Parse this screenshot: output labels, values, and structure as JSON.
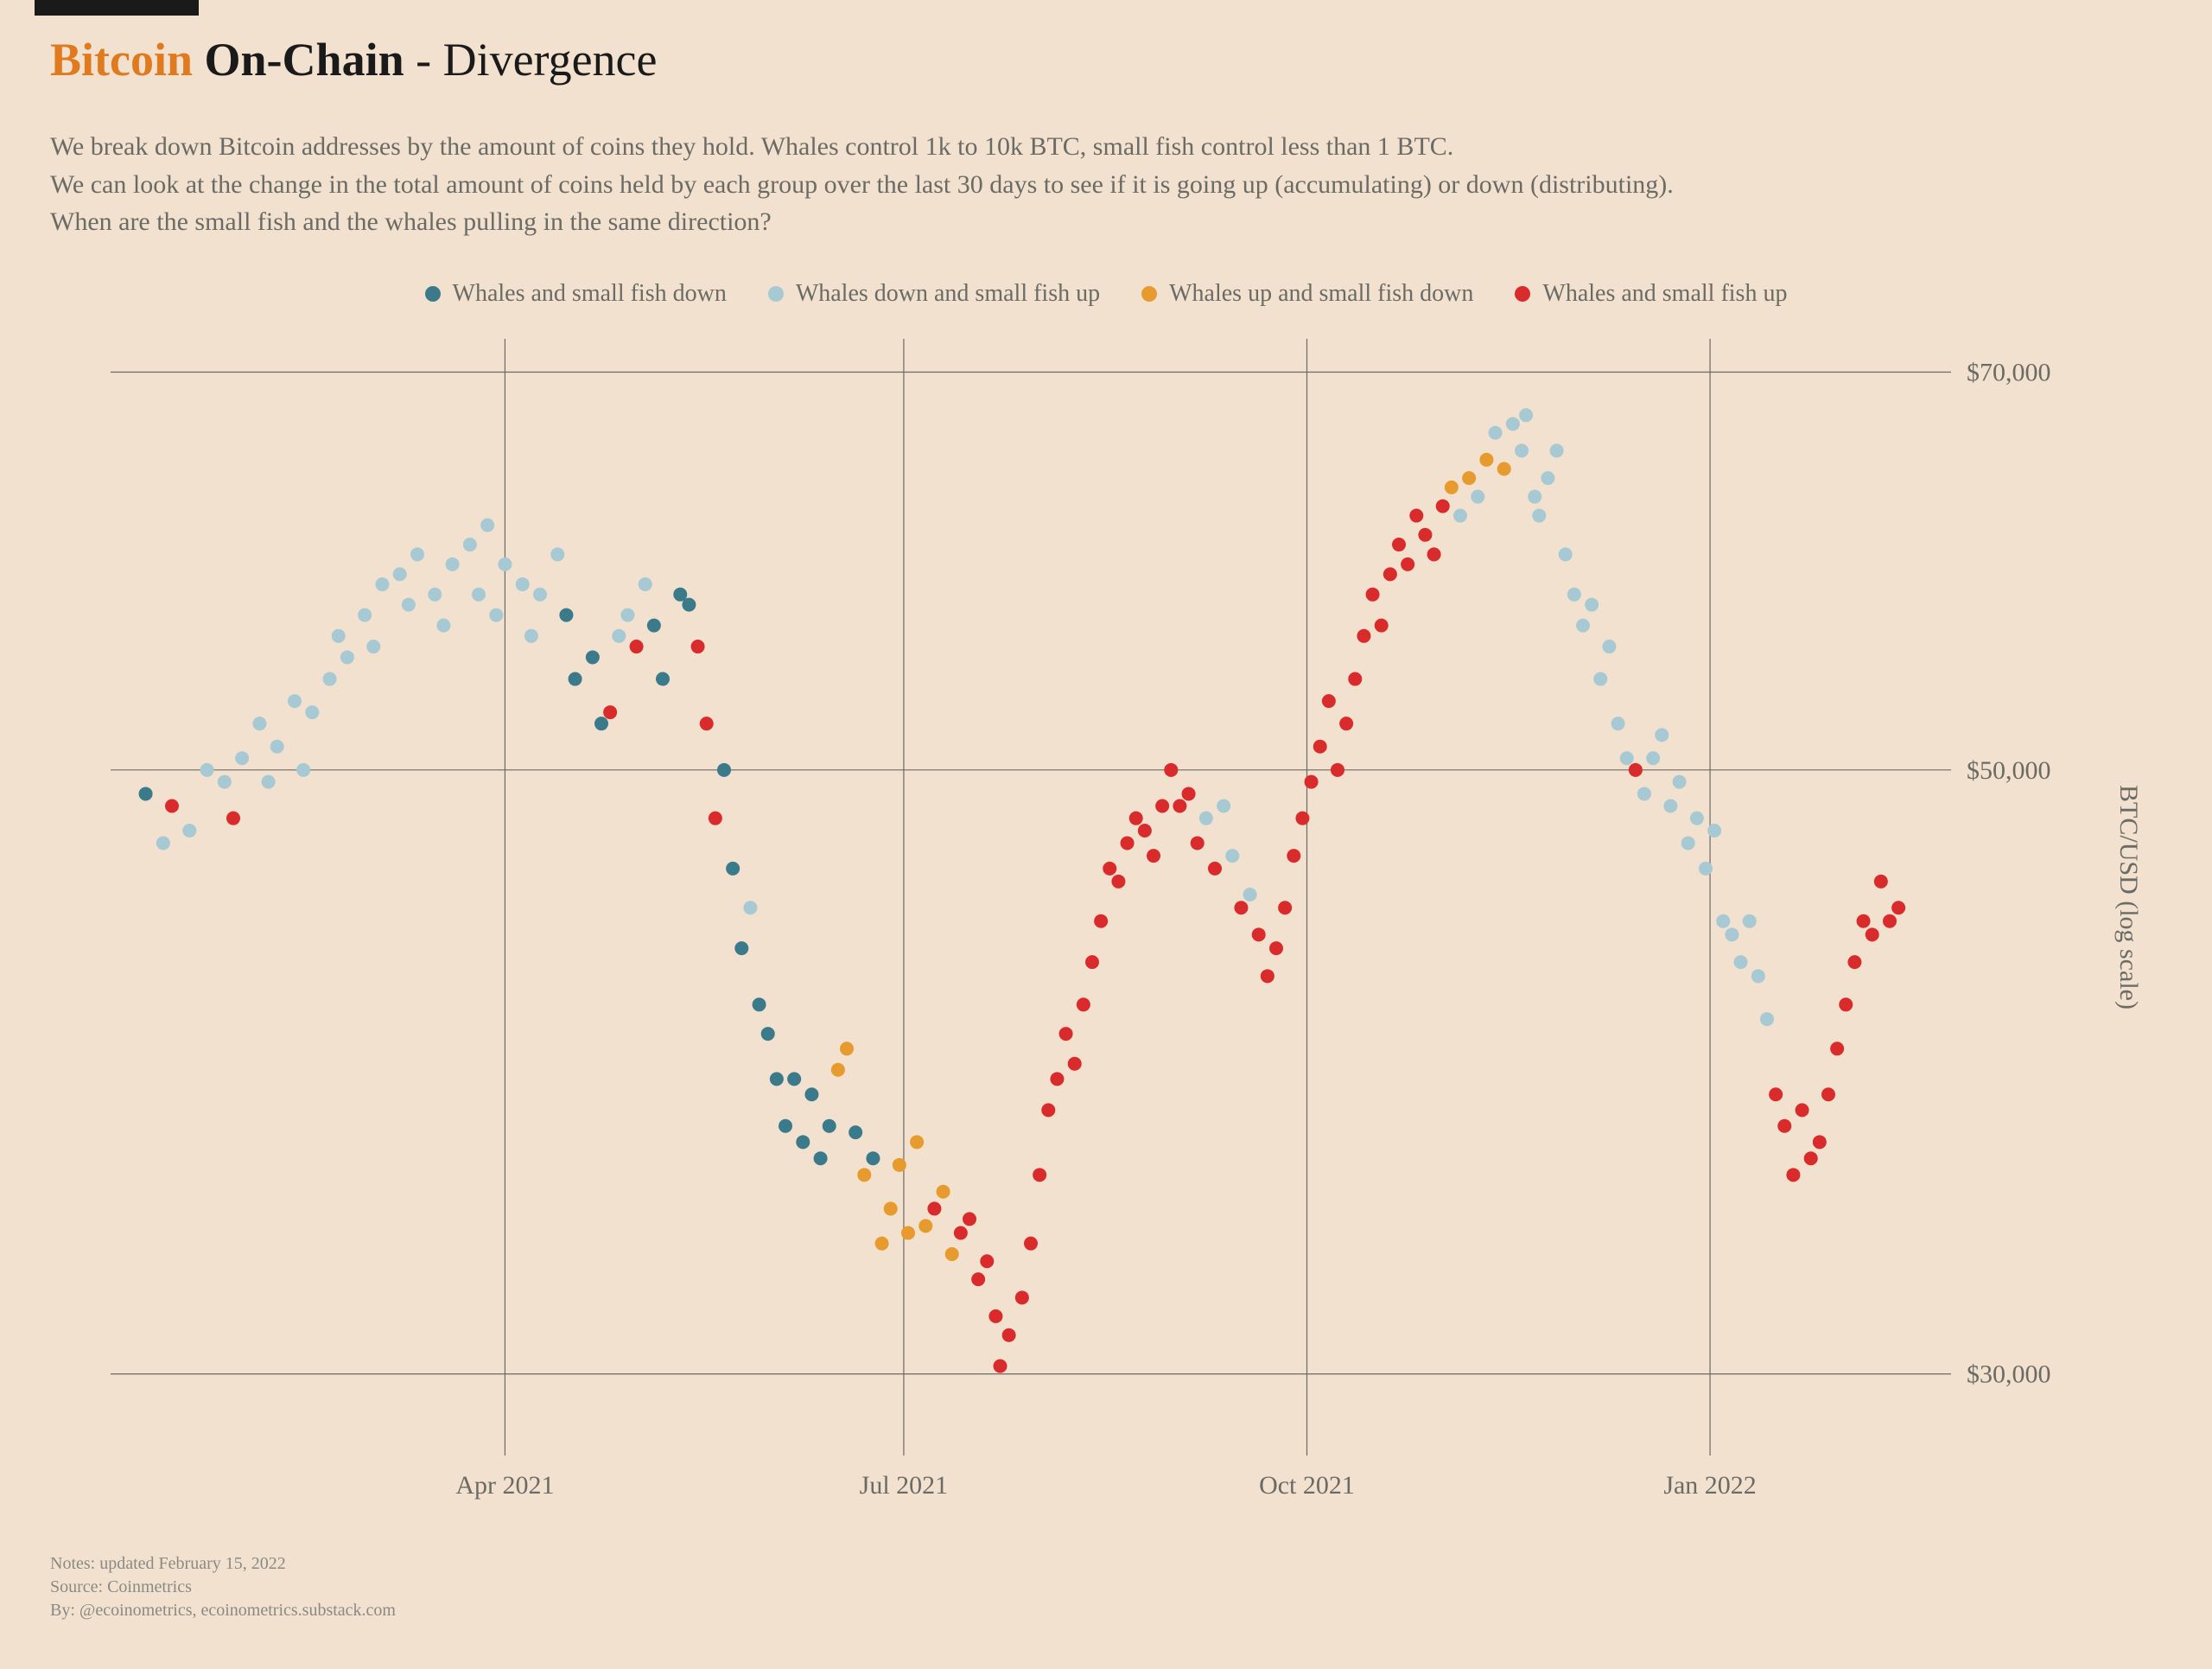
{
  "title": {
    "prefix": "Bitcoin",
    "main": " On-Chain",
    "suffix": " - Divergence"
  },
  "description": {
    "line1": "We break down Bitcoin addresses by the amount of coins they hold. Whales control 1k to 10k BTC, small fish control less than 1 BTC.",
    "line2": "We can look at the change in the total amount of coins held by each group over the last 30 days to see if it is going up (accumulating) or down (distributing).",
    "line3": "When are the small fish and the whales pulling in the same direction?"
  },
  "legend": {
    "items": [
      {
        "label": "Whales and small fish down",
        "color": "#3a7a8a"
      },
      {
        "label": "Whales down and small fish up",
        "color": "#a7c9d4"
      },
      {
        "label": "Whales up and small fish down",
        "color": "#e79a2d"
      },
      {
        "label": "Whales and small fish up",
        "color": "#d92b2b"
      }
    ]
  },
  "chart": {
    "type": "scatter",
    "background_color": "#f2e1ce",
    "grid_color": "#6b6b66",
    "yaxis_title": "BTC/USD (log scale)",
    "yaxis_scale": "log",
    "yticks": [
      {
        "value": 30000,
        "label": "$30,000"
      },
      {
        "value": 50000,
        "label": "$50,000"
      },
      {
        "value": 70000,
        "label": "$70,000"
      }
    ],
    "xticks": [
      {
        "value": 90,
        "label": "Apr 2021"
      },
      {
        "value": 181,
        "label": "Jul 2021"
      },
      {
        "value": 273,
        "label": "Oct 2021"
      },
      {
        "value": 365,
        "label": "Jan 2022"
      }
    ],
    "xlim": [
      0,
      420
    ],
    "ylim": [
      28000,
      72000
    ],
    "marker_radius": 8,
    "colors": {
      "both_down": "#3a7a8a",
      "whales_down_fish_up": "#a7c9d4",
      "whales_up_fish_down": "#e79a2d",
      "both_up": "#d92b2b"
    },
    "points": [
      {
        "x": 8,
        "y": 49000,
        "c": "both_down"
      },
      {
        "x": 12,
        "y": 47000,
        "c": "whales_down_fish_up"
      },
      {
        "x": 14,
        "y": 48500,
        "c": "both_up"
      },
      {
        "x": 18,
        "y": 47500,
        "c": "whales_down_fish_up"
      },
      {
        "x": 22,
        "y": 50000,
        "c": "whales_down_fish_up"
      },
      {
        "x": 26,
        "y": 49500,
        "c": "whales_down_fish_up"
      },
      {
        "x": 28,
        "y": 48000,
        "c": "both_up"
      },
      {
        "x": 30,
        "y": 50500,
        "c": "whales_down_fish_up"
      },
      {
        "x": 34,
        "y": 52000,
        "c": "whales_down_fish_up"
      },
      {
        "x": 36,
        "y": 49500,
        "c": "whales_down_fish_up"
      },
      {
        "x": 38,
        "y": 51000,
        "c": "whales_down_fish_up"
      },
      {
        "x": 42,
        "y": 53000,
        "c": "whales_down_fish_up"
      },
      {
        "x": 44,
        "y": 50000,
        "c": "whales_down_fish_up"
      },
      {
        "x": 46,
        "y": 52500,
        "c": "whales_down_fish_up"
      },
      {
        "x": 50,
        "y": 54000,
        "c": "whales_down_fish_up"
      },
      {
        "x": 52,
        "y": 56000,
        "c": "whales_down_fish_up"
      },
      {
        "x": 54,
        "y": 55000,
        "c": "whales_down_fish_up"
      },
      {
        "x": 58,
        "y": 57000,
        "c": "whales_down_fish_up"
      },
      {
        "x": 60,
        "y": 55500,
        "c": "whales_down_fish_up"
      },
      {
        "x": 62,
        "y": 58500,
        "c": "whales_down_fish_up"
      },
      {
        "x": 66,
        "y": 59000,
        "c": "whales_down_fish_up"
      },
      {
        "x": 68,
        "y": 57500,
        "c": "whales_down_fish_up"
      },
      {
        "x": 70,
        "y": 60000,
        "c": "whales_down_fish_up"
      },
      {
        "x": 74,
        "y": 58000,
        "c": "whales_down_fish_up"
      },
      {
        "x": 76,
        "y": 56500,
        "c": "whales_down_fish_up"
      },
      {
        "x": 78,
        "y": 59500,
        "c": "whales_down_fish_up"
      },
      {
        "x": 82,
        "y": 60500,
        "c": "whales_down_fish_up"
      },
      {
        "x": 84,
        "y": 58000,
        "c": "whales_down_fish_up"
      },
      {
        "x": 86,
        "y": 61500,
        "c": "whales_down_fish_up"
      },
      {
        "x": 88,
        "y": 57000,
        "c": "whales_down_fish_up"
      },
      {
        "x": 90,
        "y": 59500,
        "c": "whales_down_fish_up"
      },
      {
        "x": 94,
        "y": 58500,
        "c": "whales_down_fish_up"
      },
      {
        "x": 96,
        "y": 56000,
        "c": "whales_down_fish_up"
      },
      {
        "x": 98,
        "y": 58000,
        "c": "whales_down_fish_up"
      },
      {
        "x": 102,
        "y": 60000,
        "c": "whales_down_fish_up"
      },
      {
        "x": 104,
        "y": 57000,
        "c": "both_down"
      },
      {
        "x": 106,
        "y": 54000,
        "c": "both_down"
      },
      {
        "x": 110,
        "y": 55000,
        "c": "both_down"
      },
      {
        "x": 112,
        "y": 52000,
        "c": "both_down"
      },
      {
        "x": 114,
        "y": 52500,
        "c": "both_up"
      },
      {
        "x": 116,
        "y": 56000,
        "c": "whales_down_fish_up"
      },
      {
        "x": 118,
        "y": 57000,
        "c": "whales_down_fish_up"
      },
      {
        "x": 120,
        "y": 55500,
        "c": "both_up"
      },
      {
        "x": 122,
        "y": 58500,
        "c": "whales_down_fish_up"
      },
      {
        "x": 124,
        "y": 56500,
        "c": "both_down"
      },
      {
        "x": 126,
        "y": 54000,
        "c": "both_down"
      },
      {
        "x": 130,
        "y": 58000,
        "c": "both_down"
      },
      {
        "x": 132,
        "y": 57500,
        "c": "both_down"
      },
      {
        "x": 134,
        "y": 55500,
        "c": "both_up"
      },
      {
        "x": 136,
        "y": 52000,
        "c": "both_up"
      },
      {
        "x": 138,
        "y": 48000,
        "c": "both_up"
      },
      {
        "x": 140,
        "y": 50000,
        "c": "both_down"
      },
      {
        "x": 142,
        "y": 46000,
        "c": "both_down"
      },
      {
        "x": 144,
        "y": 43000,
        "c": "both_down"
      },
      {
        "x": 146,
        "y": 44500,
        "c": "whales_down_fish_up"
      },
      {
        "x": 148,
        "y": 41000,
        "c": "both_down"
      },
      {
        "x": 150,
        "y": 40000,
        "c": "both_down"
      },
      {
        "x": 152,
        "y": 38500,
        "c": "both_down"
      },
      {
        "x": 154,
        "y": 37000,
        "c": "both_down"
      },
      {
        "x": 156,
        "y": 38500,
        "c": "both_down"
      },
      {
        "x": 158,
        "y": 36500,
        "c": "both_down"
      },
      {
        "x": 160,
        "y": 38000,
        "c": "both_down"
      },
      {
        "x": 162,
        "y": 36000,
        "c": "both_down"
      },
      {
        "x": 164,
        "y": 37000,
        "c": "both_down"
      },
      {
        "x": 166,
        "y": 38800,
        "c": "whales_up_fish_down"
      },
      {
        "x": 168,
        "y": 39500,
        "c": "whales_up_fish_down"
      },
      {
        "x": 170,
        "y": 36800,
        "c": "both_down"
      },
      {
        "x": 172,
        "y": 35500,
        "c": "whales_up_fish_down"
      },
      {
        "x": 174,
        "y": 36000,
        "c": "both_down"
      },
      {
        "x": 176,
        "y": 33500,
        "c": "whales_up_fish_down"
      },
      {
        "x": 178,
        "y": 34500,
        "c": "whales_up_fish_down"
      },
      {
        "x": 180,
        "y": 35800,
        "c": "whales_up_fish_down"
      },
      {
        "x": 182,
        "y": 33800,
        "c": "whales_up_fish_down"
      },
      {
        "x": 184,
        "y": 36500,
        "c": "whales_up_fish_down"
      },
      {
        "x": 186,
        "y": 34000,
        "c": "whales_up_fish_down"
      },
      {
        "x": 188,
        "y": 34500,
        "c": "both_up"
      },
      {
        "x": 190,
        "y": 35000,
        "c": "whales_up_fish_down"
      },
      {
        "x": 192,
        "y": 33200,
        "c": "whales_up_fish_down"
      },
      {
        "x": 194,
        "y": 33800,
        "c": "both_up"
      },
      {
        "x": 196,
        "y": 34200,
        "c": "both_up"
      },
      {
        "x": 198,
        "y": 32500,
        "c": "both_up"
      },
      {
        "x": 200,
        "y": 33000,
        "c": "both_up"
      },
      {
        "x": 202,
        "y": 31500,
        "c": "both_up"
      },
      {
        "x": 203,
        "y": 30200,
        "c": "both_up"
      },
      {
        "x": 205,
        "y": 31000,
        "c": "both_up"
      },
      {
        "x": 208,
        "y": 32000,
        "c": "both_up"
      },
      {
        "x": 210,
        "y": 33500,
        "c": "both_up"
      },
      {
        "x": 212,
        "y": 35500,
        "c": "both_up"
      },
      {
        "x": 214,
        "y": 37500,
        "c": "both_up"
      },
      {
        "x": 216,
        "y": 38500,
        "c": "both_up"
      },
      {
        "x": 218,
        "y": 40000,
        "c": "both_up"
      },
      {
        "x": 220,
        "y": 39000,
        "c": "both_up"
      },
      {
        "x": 222,
        "y": 41000,
        "c": "both_up"
      },
      {
        "x": 224,
        "y": 42500,
        "c": "both_up"
      },
      {
        "x": 226,
        "y": 44000,
        "c": "both_up"
      },
      {
        "x": 228,
        "y": 46000,
        "c": "both_up"
      },
      {
        "x": 230,
        "y": 45500,
        "c": "both_up"
      },
      {
        "x": 232,
        "y": 47000,
        "c": "both_up"
      },
      {
        "x": 234,
        "y": 48000,
        "c": "both_up"
      },
      {
        "x": 236,
        "y": 47500,
        "c": "both_up"
      },
      {
        "x": 238,
        "y": 46500,
        "c": "both_up"
      },
      {
        "x": 240,
        "y": 48500,
        "c": "both_up"
      },
      {
        "x": 242,
        "y": 50000,
        "c": "both_up"
      },
      {
        "x": 244,
        "y": 48500,
        "c": "both_up"
      },
      {
        "x": 246,
        "y": 49000,
        "c": "both_up"
      },
      {
        "x": 248,
        "y": 47000,
        "c": "both_up"
      },
      {
        "x": 250,
        "y": 48000,
        "c": "whales_down_fish_up"
      },
      {
        "x": 252,
        "y": 46000,
        "c": "both_up"
      },
      {
        "x": 254,
        "y": 48500,
        "c": "whales_down_fish_up"
      },
      {
        "x": 256,
        "y": 46500,
        "c": "whales_down_fish_up"
      },
      {
        "x": 258,
        "y": 44500,
        "c": "both_up"
      },
      {
        "x": 260,
        "y": 45000,
        "c": "whales_down_fish_up"
      },
      {
        "x": 262,
        "y": 43500,
        "c": "both_up"
      },
      {
        "x": 264,
        "y": 42000,
        "c": "both_up"
      },
      {
        "x": 266,
        "y": 43000,
        "c": "both_up"
      },
      {
        "x": 268,
        "y": 44500,
        "c": "both_up"
      },
      {
        "x": 270,
        "y": 46500,
        "c": "both_up"
      },
      {
        "x": 272,
        "y": 48000,
        "c": "both_up"
      },
      {
        "x": 274,
        "y": 49500,
        "c": "both_up"
      },
      {
        "x": 276,
        "y": 51000,
        "c": "both_up"
      },
      {
        "x": 278,
        "y": 53000,
        "c": "both_up"
      },
      {
        "x": 280,
        "y": 50000,
        "c": "both_up"
      },
      {
        "x": 282,
        "y": 52000,
        "c": "both_up"
      },
      {
        "x": 284,
        "y": 54000,
        "c": "both_up"
      },
      {
        "x": 286,
        "y": 56000,
        "c": "both_up"
      },
      {
        "x": 288,
        "y": 58000,
        "c": "both_up"
      },
      {
        "x": 290,
        "y": 56500,
        "c": "both_up"
      },
      {
        "x": 292,
        "y": 59000,
        "c": "both_up"
      },
      {
        "x": 294,
        "y": 60500,
        "c": "both_up"
      },
      {
        "x": 296,
        "y": 59500,
        "c": "both_up"
      },
      {
        "x": 298,
        "y": 62000,
        "c": "both_up"
      },
      {
        "x": 300,
        "y": 61000,
        "c": "both_up"
      },
      {
        "x": 302,
        "y": 60000,
        "c": "both_up"
      },
      {
        "x": 304,
        "y": 62500,
        "c": "both_up"
      },
      {
        "x": 306,
        "y": 63500,
        "c": "whales_up_fish_down"
      },
      {
        "x": 308,
        "y": 62000,
        "c": "whales_down_fish_up"
      },
      {
        "x": 310,
        "y": 64000,
        "c": "whales_up_fish_down"
      },
      {
        "x": 312,
        "y": 63000,
        "c": "whales_down_fish_up"
      },
      {
        "x": 314,
        "y": 65000,
        "c": "whales_up_fish_down"
      },
      {
        "x": 316,
        "y": 66500,
        "c": "whales_down_fish_up"
      },
      {
        "x": 318,
        "y": 64500,
        "c": "whales_up_fish_down"
      },
      {
        "x": 320,
        "y": 67000,
        "c": "whales_down_fish_up"
      },
      {
        "x": 322,
        "y": 65500,
        "c": "whales_down_fish_up"
      },
      {
        "x": 323,
        "y": 67500,
        "c": "whales_down_fish_up"
      },
      {
        "x": 325,
        "y": 63000,
        "c": "whales_down_fish_up"
      },
      {
        "x": 326,
        "y": 62000,
        "c": "whales_down_fish_up"
      },
      {
        "x": 328,
        "y": 64000,
        "c": "whales_down_fish_up"
      },
      {
        "x": 330,
        "y": 65500,
        "c": "whales_down_fish_up"
      },
      {
        "x": 332,
        "y": 60000,
        "c": "whales_down_fish_up"
      },
      {
        "x": 334,
        "y": 58000,
        "c": "whales_down_fish_up"
      },
      {
        "x": 336,
        "y": 56500,
        "c": "whales_down_fish_up"
      },
      {
        "x": 338,
        "y": 57500,
        "c": "whales_down_fish_up"
      },
      {
        "x": 340,
        "y": 54000,
        "c": "whales_down_fish_up"
      },
      {
        "x": 342,
        "y": 55500,
        "c": "whales_down_fish_up"
      },
      {
        "x": 344,
        "y": 52000,
        "c": "whales_down_fish_up"
      },
      {
        "x": 346,
        "y": 50500,
        "c": "whales_down_fish_up"
      },
      {
        "x": 348,
        "y": 50000,
        "c": "both_up"
      },
      {
        "x": 350,
        "y": 49000,
        "c": "whales_down_fish_up"
      },
      {
        "x": 352,
        "y": 50500,
        "c": "whales_down_fish_up"
      },
      {
        "x": 354,
        "y": 51500,
        "c": "whales_down_fish_up"
      },
      {
        "x": 356,
        "y": 48500,
        "c": "whales_down_fish_up"
      },
      {
        "x": 358,
        "y": 49500,
        "c": "whales_down_fish_up"
      },
      {
        "x": 360,
        "y": 47000,
        "c": "whales_down_fish_up"
      },
      {
        "x": 362,
        "y": 48000,
        "c": "whales_down_fish_up"
      },
      {
        "x": 364,
        "y": 46000,
        "c": "whales_down_fish_up"
      },
      {
        "x": 366,
        "y": 47500,
        "c": "whales_down_fish_up"
      },
      {
        "x": 368,
        "y": 44000,
        "c": "whales_down_fish_up"
      },
      {
        "x": 370,
        "y": 43500,
        "c": "whales_down_fish_up"
      },
      {
        "x": 372,
        "y": 42500,
        "c": "whales_down_fish_up"
      },
      {
        "x": 374,
        "y": 44000,
        "c": "whales_down_fish_up"
      },
      {
        "x": 376,
        "y": 42000,
        "c": "whales_down_fish_up"
      },
      {
        "x": 378,
        "y": 40500,
        "c": "whales_down_fish_up"
      },
      {
        "x": 380,
        "y": 38000,
        "c": "both_up"
      },
      {
        "x": 382,
        "y": 37000,
        "c": "both_up"
      },
      {
        "x": 384,
        "y": 35500,
        "c": "both_up"
      },
      {
        "x": 386,
        "y": 37500,
        "c": "both_up"
      },
      {
        "x": 388,
        "y": 36000,
        "c": "both_up"
      },
      {
        "x": 390,
        "y": 36500,
        "c": "both_up"
      },
      {
        "x": 392,
        "y": 38000,
        "c": "both_up"
      },
      {
        "x": 394,
        "y": 39500,
        "c": "both_up"
      },
      {
        "x": 396,
        "y": 41000,
        "c": "both_up"
      },
      {
        "x": 398,
        "y": 42500,
        "c": "both_up"
      },
      {
        "x": 400,
        "y": 44000,
        "c": "both_up"
      },
      {
        "x": 402,
        "y": 43500,
        "c": "both_up"
      },
      {
        "x": 404,
        "y": 45500,
        "c": "both_up"
      },
      {
        "x": 406,
        "y": 44000,
        "c": "both_up"
      },
      {
        "x": 408,
        "y": 44500,
        "c": "both_up"
      }
    ]
  },
  "footer": {
    "notes": "Notes: updated February 15, 2022",
    "source": "Source: Coinmetrics",
    "by": "By: @ecoinometrics, ecoinometrics.substack.com"
  }
}
